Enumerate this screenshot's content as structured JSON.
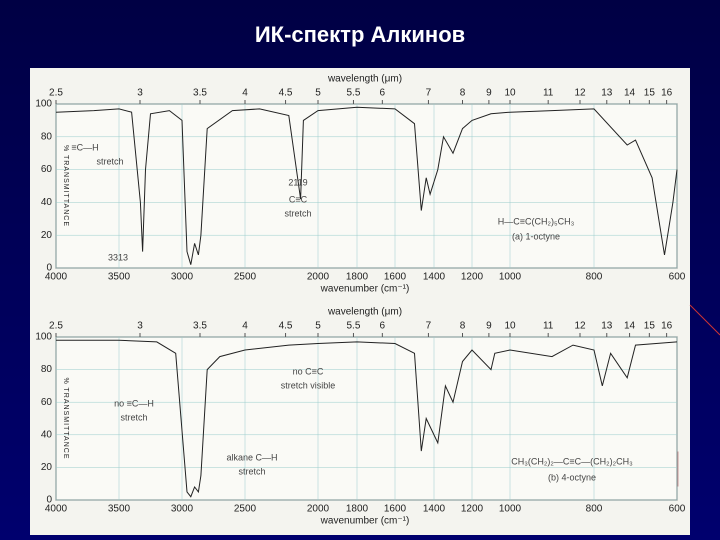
{
  "slide_title": "ИК-спектр Алкинов",
  "chart_data": [
    {
      "type": "line",
      "top_axis_label": "wavelength (μm)",
      "x_label": "wavenumber (cm⁻¹)",
      "y_label": "% TRANSMITTANCE",
      "xlim": [
        4000,
        600
      ],
      "xticks": [
        4000,
        3500,
        3000,
        2500,
        2000,
        1800,
        1600,
        1400,
        1200,
        1000,
        800,
        600
      ],
      "x2ticks": [
        2.5,
        3,
        3.5,
        4,
        4.5,
        5,
        5.5,
        6,
        7,
        8,
        9,
        10,
        11,
        12,
        13,
        14,
        15,
        16
      ],
      "ylim": [
        0,
        100
      ],
      "yticks": [
        0,
        20,
        40,
        60,
        80,
        100
      ],
      "grid": true,
      "color": "#222222",
      "x": [
        4000,
        3700,
        3500,
        3400,
        3330,
        3313,
        3290,
        3250,
        3100,
        3000,
        2960,
        2930,
        2900,
        2870,
        2850,
        2800,
        2600,
        2400,
        2200,
        2119,
        2100,
        2000,
        1800,
        1600,
        1500,
        1465,
        1440,
        1420,
        1380,
        1350,
        1300,
        1250,
        1200,
        1100,
        1000,
        900,
        800,
        720,
        700,
        660,
        630,
        610,
        600
      ],
      "values": [
        95,
        96,
        97,
        95,
        40,
        10,
        60,
        94,
        96,
        90,
        10,
        2,
        15,
        8,
        20,
        85,
        96,
        97,
        93,
        42,
        90,
        96,
        98,
        97,
        88,
        35,
        55,
        45,
        60,
        80,
        70,
        85,
        90,
        94,
        95,
        96,
        97,
        75,
        78,
        55,
        8,
        40,
        60
      ],
      "annotations": [
        "≡C—H",
        "stretch",
        "3313",
        "2119",
        "C≡C",
        "stretch",
        "H—C≡C(CH₂)₅CH₃",
        "(a) 1-octyne"
      ]
    },
    {
      "type": "line",
      "top_axis_label": "wavelength (μm)",
      "x_label": "wavenumber (cm⁻¹)",
      "y_label": "% TRANSMITTANCE",
      "xlim": [
        4000,
        600
      ],
      "xticks": [
        4000,
        3500,
        3000,
        2500,
        2000,
        1800,
        1600,
        1400,
        1200,
        1000,
        800,
        600
      ],
      "x2ticks": [
        2.5,
        3,
        3.5,
        4,
        4.5,
        5,
        5.5,
        6,
        7,
        8,
        9,
        10,
        11,
        12,
        13,
        14,
        15,
        16
      ],
      "ylim": [
        0,
        100
      ],
      "yticks": [
        0,
        20,
        40,
        60,
        80,
        100
      ],
      "grid": true,
      "color": "#222222",
      "x": [
        4000,
        3500,
        3200,
        3050,
        2960,
        2930,
        2900,
        2870,
        2850,
        2800,
        2700,
        2500,
        2200,
        2000,
        1800,
        1600,
        1500,
        1465,
        1440,
        1380,
        1340,
        1300,
        1250,
        1200,
        1100,
        1080,
        1000,
        900,
        850,
        800,
        780,
        760,
        720,
        700,
        600
      ],
      "values": [
        98,
        98,
        97,
        90,
        5,
        2,
        8,
        5,
        15,
        80,
        88,
        92,
        95,
        96,
        97,
        96,
        90,
        30,
        50,
        35,
        70,
        60,
        85,
        92,
        80,
        90,
        92,
        88,
        95,
        92,
        70,
        90,
        75,
        95,
        97
      ],
      "annotations": [
        "no ≡C—H",
        "stretch",
        "no C≡C",
        "stretch visible",
        "alkane C—H",
        "stretch",
        "CH₃(CH₂)₂—C≡C—(CH₂)₂CH₃",
        "(b) 4-octyne"
      ]
    }
  ]
}
